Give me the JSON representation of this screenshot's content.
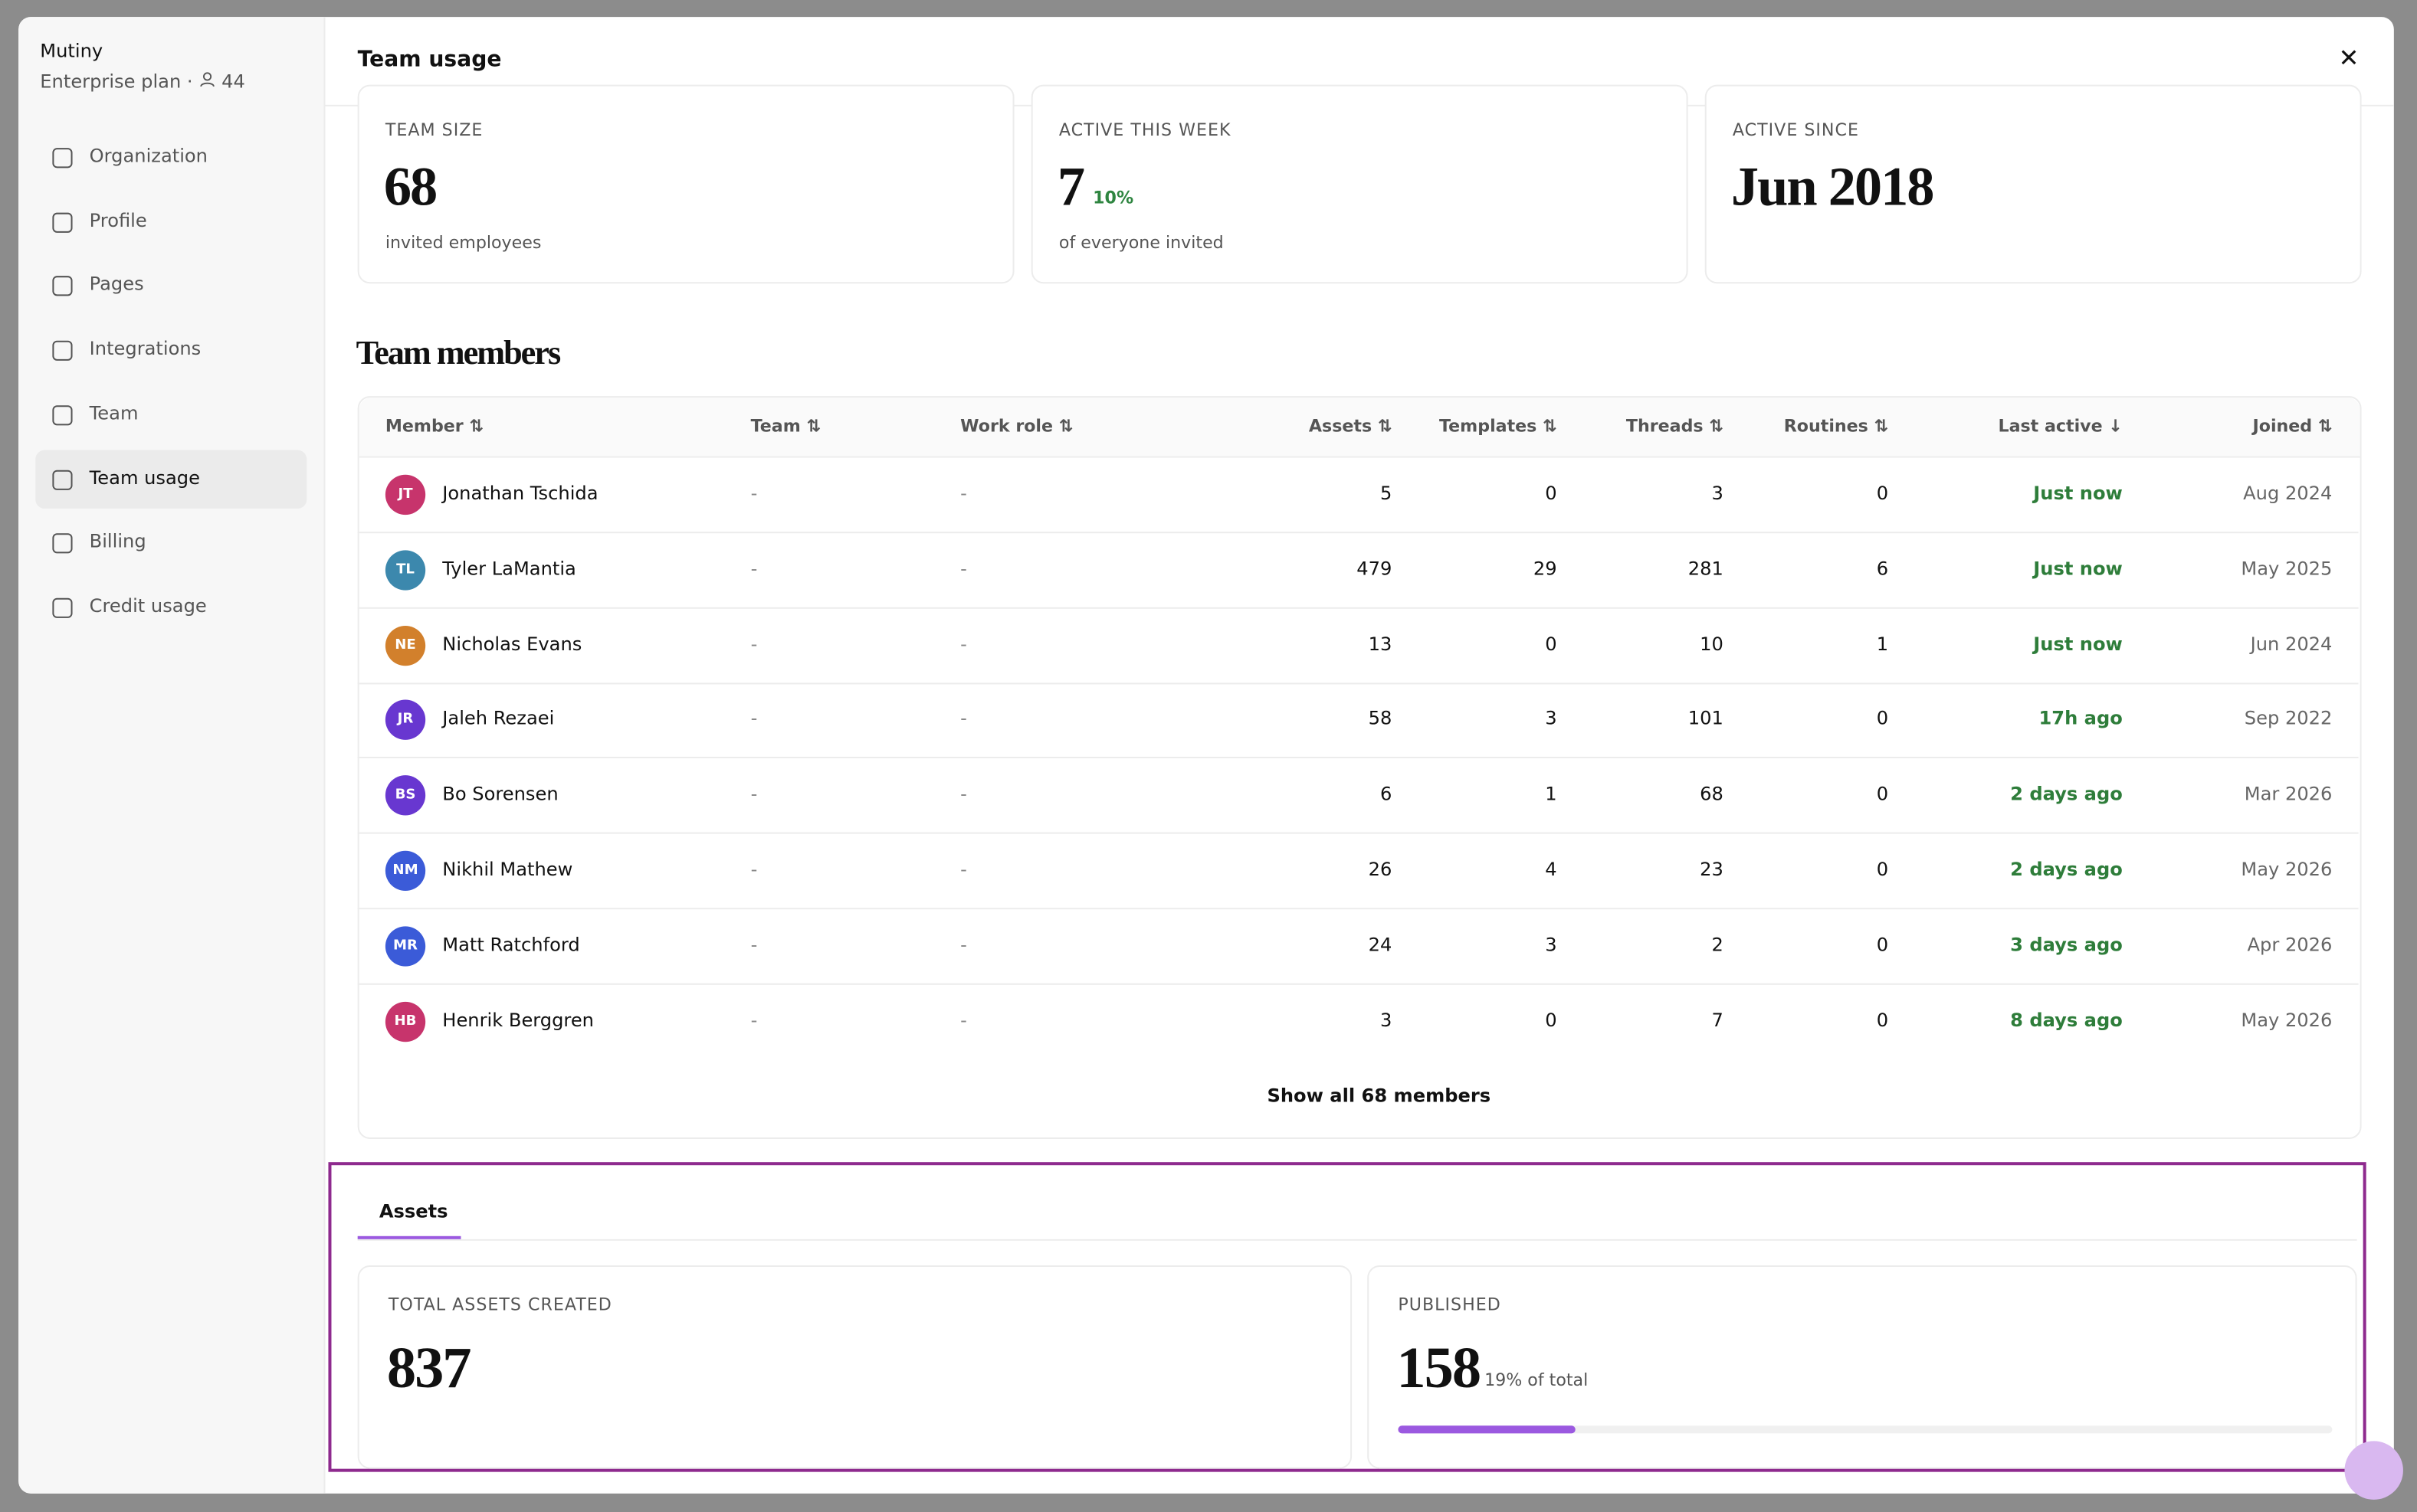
{
  "sidebar": {
    "org": "Mutiny",
    "plan": "Enterprise plan ·",
    "members": "44",
    "nav": [
      "Organization",
      "Profile",
      "Pages",
      "Integrations",
      "Team",
      "Team usage",
      "Billing",
      "Credit usage"
    ],
    "active": "Team usage"
  },
  "header": {
    "title": "Team usage"
  },
  "stats": [
    {
      "label": "TEAM SIZE",
      "value": "68",
      "note": "invited employees"
    },
    {
      "label": "ACTIVE THIS WEEK",
      "value": "7",
      "badge": "10%",
      "note": "of everyone invited"
    },
    {
      "label": "ACTIVE SINCE",
      "value": "Jun 2018"
    }
  ],
  "table": {
    "title": "Team members",
    "columns": [
      "Member",
      "Team",
      "Work role",
      "Assets",
      "Templates",
      "Threads",
      "Routines",
      "Last active",
      "Joined"
    ],
    "rows": [
      {
        "initials": "JT",
        "color": "#c7346c",
        "cells": [
          "Jonathan Tschida",
          "-",
          "-",
          "5",
          "0",
          "3",
          "0",
          "Just now",
          "Aug 2024"
        ]
      },
      {
        "initials": "TL",
        "color": "#3c88ad",
        "cells": [
          "Tyler LaMantia",
          "-",
          "-",
          "479",
          "29",
          "281",
          "6",
          "Just now",
          "May 2025"
        ]
      },
      {
        "initials": "NE",
        "color": "#d2802c",
        "cells": [
          "Nicholas Evans",
          "-",
          "-",
          "13",
          "0",
          "10",
          "1",
          "Just now",
          "Jun 2024"
        ]
      },
      {
        "initials": "JR",
        "color": "#6837d0",
        "cells": [
          "Jaleh Rezaei",
          "-",
          "-",
          "58",
          "3",
          "101",
          "0",
          "17h ago",
          "Sep 2022"
        ]
      },
      {
        "initials": "BS",
        "color": "#6837d0",
        "cells": [
          "Bo Sorensen",
          "-",
          "-",
          "6",
          "1",
          "68",
          "0",
          "2 days ago",
          "Mar 2026"
        ]
      },
      {
        "initials": "NM",
        "color": "#3b5bd8",
        "cells": [
          "Nikhil Mathew",
          "-",
          "-",
          "26",
          "4",
          "23",
          "0",
          "2 days ago",
          "May 2026"
        ]
      },
      {
        "initials": "MR",
        "color": "#3b5bd8",
        "cells": [
          "Matt Ratchford",
          "-",
          "-",
          "24",
          "3",
          "2",
          "0",
          "3 days ago",
          "Apr 2026"
        ]
      },
      {
        "initials": "HB",
        "color": "#c7346c",
        "cells": [
          "Henrik Berggren",
          "-",
          "-",
          "3",
          "0",
          "7",
          "0",
          "8 days ago",
          "May 2026"
        ]
      }
    ],
    "footer": "Show all 68 members"
  },
  "tabs": [
    "Assets"
  ],
  "assets": [
    {
      "label": "TOTAL ASSETS CREATED",
      "value": "837"
    },
    {
      "label": "PUBLISHED",
      "value": "158",
      "note": "19% of total"
    }
  ]
}
